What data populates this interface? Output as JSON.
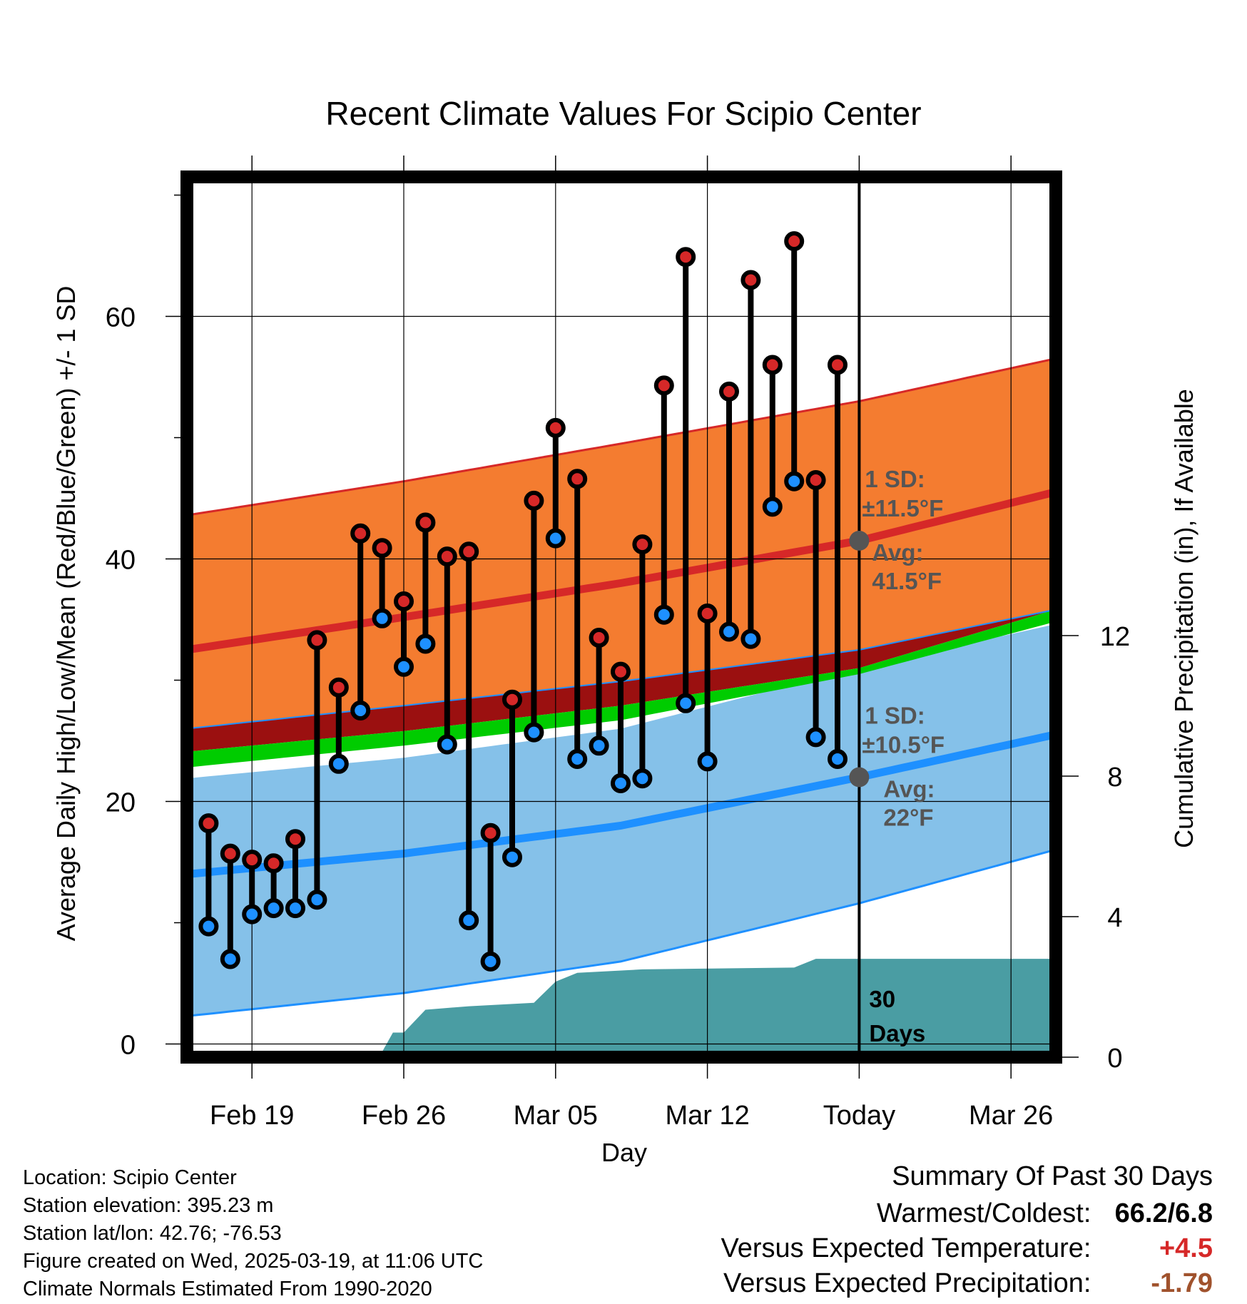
{
  "chart_data": {
    "type": "line",
    "title": "Recent Climate Values For Scipio Center",
    "xlabel": "Day",
    "ylabel": "Average Daily High/Low/Mean (Red/Blue/Green) +/- 1 SD",
    "y2label": "Cumulative Precipitation (in), If Available",
    "x_tick_labels": [
      "Feb 19",
      "Feb 26",
      "Mar 05",
      "Mar 12",
      "Today",
      "Mar 26"
    ],
    "x_ticks_day": [
      3,
      10,
      17,
      24,
      31,
      38
    ],
    "xlim_day": [
      0,
      40
    ],
    "ylim": [
      -2.0,
      71.5
    ],
    "y_ticks": [
      0,
      20,
      40,
      60
    ],
    "y_minor_ticks": [
      10,
      30,
      50,
      70
    ],
    "y2lim": [
      0,
      24
    ],
    "y2_ticks": [
      0,
      4,
      8,
      12
    ],
    "grid": true,
    "today_day": 31,
    "today_label_lines": [
      "30",
      "Days"
    ],
    "normals": {
      "day": [
        0,
        10,
        20,
        31,
        40
      ],
      "high_upper": [
        43.6,
        46.4,
        49.5,
        53.0,
        56.5
      ],
      "high_mean": [
        32.5,
        35.2,
        38.0,
        41.5,
        45.5
      ],
      "high_lower": [
        26.0,
        27.9,
        29.9,
        32.5,
        35.8
      ],
      "mean_upper": [
        24.1,
        25.8,
        27.9,
        31.0,
        35.8
      ],
      "mean_lower": [
        22.8,
        24.6,
        26.7,
        30.5,
        34.8
      ],
      "low_upper": [
        21.9,
        23.6,
        26.0,
        31.0,
        34.6
      ],
      "low_mean": [
        14.0,
        15.7,
        18.0,
        22.0,
        25.5
      ],
      "low_lower": [
        2.3,
        4.2,
        6.8,
        11.6,
        16.0
      ]
    },
    "series": [
      {
        "name": "High",
        "color": "#d62828",
        "day": [
          1,
          2,
          3,
          4,
          5,
          6,
          7,
          8,
          9,
          10,
          11,
          12,
          13,
          14,
          15,
          16,
          17,
          18,
          19,
          20,
          21,
          22,
          23,
          24,
          25,
          26,
          27,
          28,
          29,
          30
        ],
        "values": [
          18.2,
          15.7,
          15.2,
          14.9,
          16.9,
          33.3,
          29.4,
          42.1,
          40.9,
          36.5,
          43.0,
          40.2,
          40.6,
          17.4,
          28.4,
          44.8,
          50.8,
          46.6,
          33.5,
          30.7,
          41.2,
          54.3,
          64.9,
          35.5,
          53.8,
          63.0,
          56.0,
          66.2,
          46.5,
          56.0
        ]
      },
      {
        "name": "Low",
        "color": "#1e90ff",
        "day": [
          1,
          2,
          3,
          4,
          5,
          6,
          7,
          8,
          9,
          10,
          11,
          12,
          13,
          14,
          15,
          16,
          17,
          18,
          19,
          20,
          21,
          22,
          23,
          24,
          25,
          26,
          27,
          28,
          29,
          30
        ],
        "values": [
          9.7,
          7.0,
          10.7,
          11.2,
          11.2,
          11.9,
          23.1,
          27.5,
          35.1,
          31.1,
          33.0,
          24.7,
          10.2,
          6.8,
          15.4,
          25.7,
          41.7,
          23.5,
          24.6,
          21.5,
          21.9,
          35.4,
          28.1,
          23.3,
          34.0,
          33.4,
          44.3,
          46.4,
          25.3,
          23.5
        ]
      }
    ],
    "precipitation": {
      "day": [
        0,
        8,
        9,
        9.5,
        10,
        11,
        13,
        16,
        17,
        18,
        21,
        28,
        29,
        40
      ],
      "values": [
        0,
        0,
        0.15,
        0.7,
        0.7,
        1.35,
        1.45,
        1.55,
        2.15,
        2.4,
        2.5,
        2.55,
        2.8,
        2.8
      ]
    },
    "annotations": {
      "high": {
        "sd_label": "1 SD:",
        "sd_value": "±11.5°F",
        "avg_label": "Avg:",
        "avg_value": "41.5°F",
        "avg_point": 41.5
      },
      "low": {
        "sd_label": "1 SD:",
        "sd_value": "±10.5°F",
        "avg_label": "Avg:",
        "avg_value": "22°F",
        "avg_point": 22.0
      }
    },
    "colors": {
      "high_band": "#f47c30",
      "high_edge": "#d62828",
      "high_mean_line": "#d62828",
      "mean_band": "#00cc00",
      "mean_dark_band": "#9b1010",
      "low_band": "#85c1e9",
      "low_edge": "#1e90ff",
      "low_mean_line": "#1e90ff",
      "precip": "#4a9da3",
      "annotation": "#555555"
    }
  },
  "info": {
    "location": "Location: Scipio Center",
    "elevation": "Station elevation: 395.23 m",
    "latlon": "Station lat/lon: 42.76; -76.53",
    "created": "Figure created on Wed, 2025-03-19, at 11:06 UTC",
    "normals": "Climate Normals Estimated From 1990-2020"
  },
  "summary": {
    "title": "Summary Of Past 30 Days",
    "warmest_label": "Warmest/Coldest:",
    "warmest_value": "66.2/6.8",
    "temp_label": "Versus Expected Temperature:",
    "temp_value": "+4.5",
    "temp_color": "#d62828",
    "precip_label": "Versus Expected Precipitation:",
    "precip_value": "-1.79",
    "precip_color": "#a0522d"
  }
}
